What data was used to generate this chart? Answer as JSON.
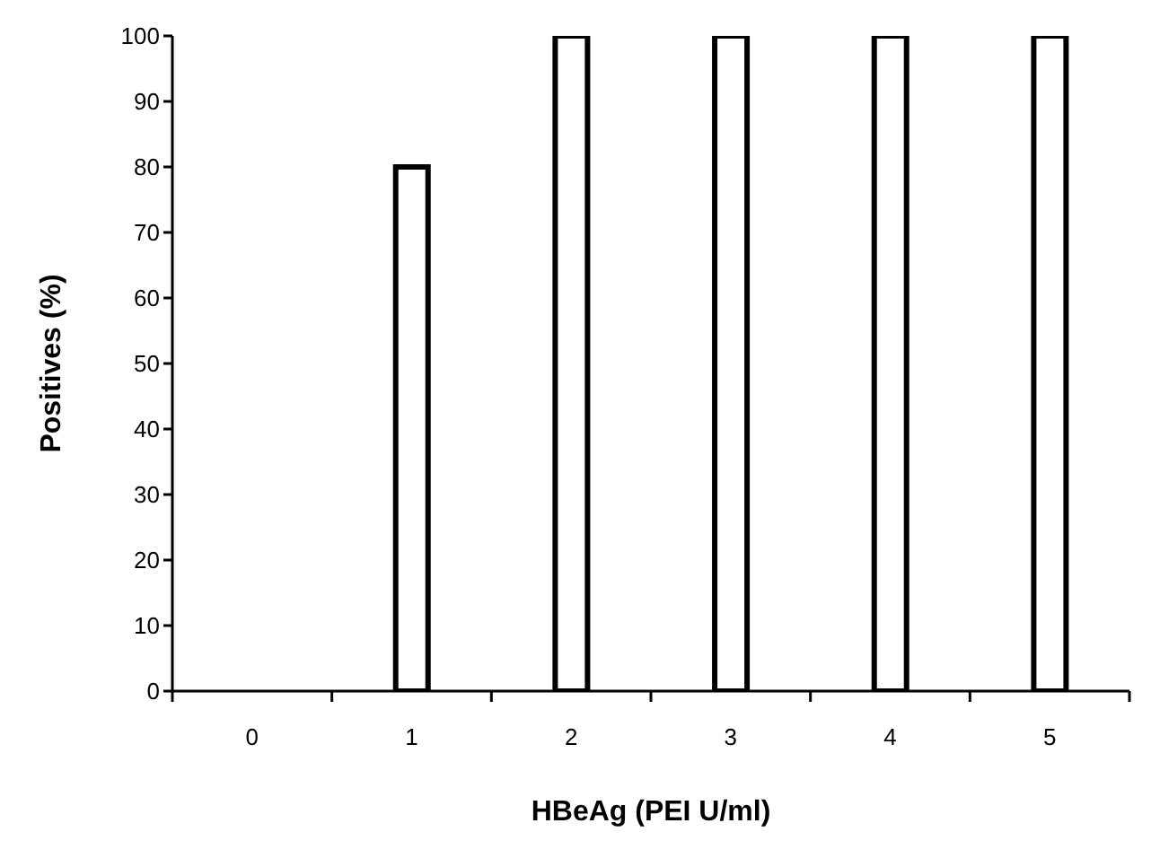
{
  "chart_data": {
    "type": "bar",
    "categories": [
      "0",
      "1",
      "2",
      "3",
      "4",
      "5"
    ],
    "values": [
      0,
      80,
      100,
      100,
      100,
      100
    ],
    "color": "#ffffff",
    "xlabel": "HBeAg (PEI U/ml)",
    "ylabel": "Positives (%)",
    "ylim": [
      0,
      100
    ],
    "yticks": [
      0,
      10,
      20,
      30,
      40,
      50,
      60,
      70,
      80,
      90,
      100
    ],
    "grid": false,
    "legend": false
  }
}
